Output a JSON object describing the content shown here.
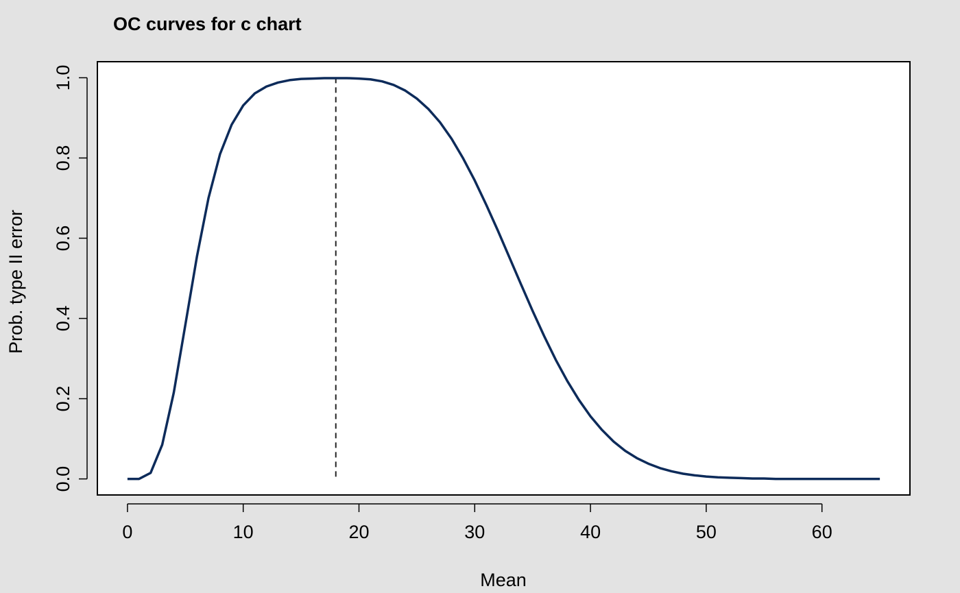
{
  "colors": {
    "background": "#e3e3e3",
    "plot_background": "#ffffff",
    "curve": "#0d2b5a",
    "reference_line": "#222222"
  },
  "chart_data": {
    "type": "line",
    "title": "OC curves for c chart",
    "xlabel": "Mean",
    "ylabel": "Prob. type II error",
    "xlim": [
      -2.6,
      67.6
    ],
    "ylim": [
      -0.04,
      1.04
    ],
    "xticks": [
      0,
      10,
      20,
      30,
      40,
      50,
      60
    ],
    "yticks": [
      0.0,
      0.2,
      0.4,
      0.6,
      0.8,
      1.0
    ],
    "ytick_labels": [
      "0.0",
      "0.2",
      "0.4",
      "0.6",
      "0.8",
      "1.0"
    ],
    "grid": false,
    "legend": "none",
    "reference_line": {
      "orientation": "vertical",
      "x": 18,
      "style": "dashed"
    },
    "series": [
      {
        "x": [
          0,
          1,
          2,
          3,
          4,
          5,
          6,
          7,
          8,
          9,
          10,
          11,
          12,
          13,
          14,
          15,
          16,
          17,
          18,
          19,
          20,
          21,
          22,
          23,
          24,
          25,
          26,
          27,
          28,
          29,
          30,
          31,
          32,
          33,
          34,
          35,
          36,
          37,
          38,
          39,
          40,
          41,
          42,
          43,
          44,
          45,
          46,
          47,
          48,
          49,
          50,
          51,
          52,
          53,
          54,
          55,
          56,
          57,
          58,
          59,
          60,
          61,
          62,
          63,
          64,
          65
        ],
        "values": [
          0.0,
          0.0,
          0.015,
          0.085,
          0.215,
          0.384,
          0.554,
          0.7,
          0.81,
          0.883,
          0.931,
          0.961,
          0.978,
          0.988,
          0.994,
          0.997,
          0.998,
          0.999,
          0.999,
          0.999,
          0.998,
          0.996,
          0.991,
          0.982,
          0.968,
          0.948,
          0.922,
          0.889,
          0.848,
          0.799,
          0.744,
          0.683,
          0.619,
          0.552,
          0.485,
          0.419,
          0.356,
          0.297,
          0.244,
          0.197,
          0.156,
          0.122,
          0.093,
          0.07,
          0.052,
          0.038,
          0.027,
          0.019,
          0.013,
          0.009,
          0.006,
          0.004,
          0.003,
          0.002,
          0.001,
          0.001,
          0.0,
          0.0,
          0.0,
          0.0,
          0.0,
          0.0,
          0.0,
          0.0,
          0.0,
          0.0
        ]
      }
    ]
  }
}
